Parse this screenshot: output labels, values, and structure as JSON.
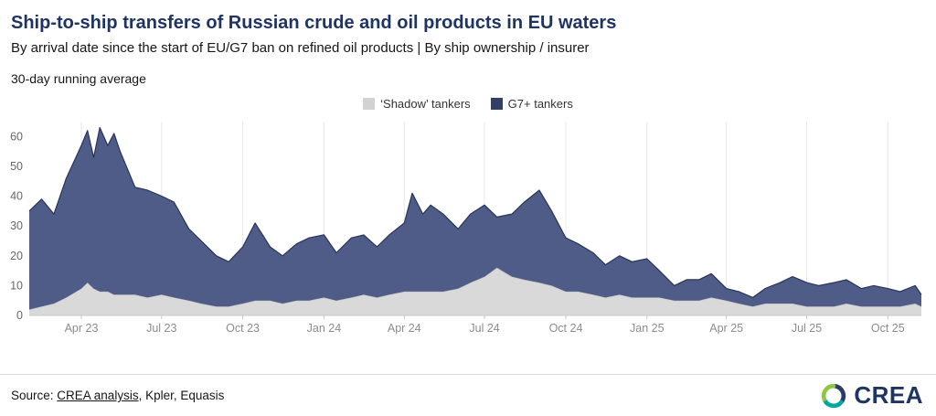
{
  "header": {
    "title": "Ship-to-ship transfers of Russian crude and oil products in EU waters",
    "subtitle": "By arrival date since the start of EU/G7 ban on refined oil products | By ship ownership / insurer",
    "note": "30-day running average"
  },
  "legend": {
    "items": [
      {
        "label": "‘Shadow’ tankers",
        "color": "#d2d2d2"
      },
      {
        "label": "G7+ tankers",
        "color": "#333f6b"
      }
    ]
  },
  "footer": {
    "source_prefix": "Source: ",
    "source_link": "CREA analysis",
    "source_suffix": ", Kpler, Equasis",
    "brand": "CREA"
  },
  "colors": {
    "title": "#1e3464",
    "grid": "#e8e8e8",
    "axis": "#c9c9c9",
    "x_label": "#8c8c8c",
    "y_label": "#666666"
  },
  "chart_data": {
    "type": "area",
    "stacked": true,
    "title": "Ship-to-ship transfers of Russian crude and oil products in EU waters",
    "xlabel": "",
    "ylabel": "",
    "ylim": [
      0,
      65
    ],
    "yticks": [
      0,
      10,
      20,
      30,
      40,
      50,
      60
    ],
    "grid": "vertical",
    "legend_position": "top-center",
    "x": [
      "2023-02-01",
      "2023-02-15",
      "2023-03-01",
      "2023-03-15",
      "2023-04-01",
      "2023-04-08",
      "2023-04-15",
      "2023-04-22",
      "2023-05-01",
      "2023-05-08",
      "2023-05-15",
      "2023-06-01",
      "2023-06-15",
      "2023-07-01",
      "2023-07-15",
      "2023-08-01",
      "2023-08-15",
      "2023-09-01",
      "2023-09-15",
      "2023-10-01",
      "2023-10-15",
      "2023-11-01",
      "2023-11-15",
      "2023-12-01",
      "2023-12-15",
      "2024-01-01",
      "2024-01-15",
      "2024-02-01",
      "2024-02-15",
      "2024-03-01",
      "2024-03-15",
      "2024-04-01",
      "2024-04-10",
      "2024-04-22",
      "2024-05-01",
      "2024-05-15",
      "2024-06-01",
      "2024-06-15",
      "2024-07-01",
      "2024-07-15",
      "2024-08-01",
      "2024-08-15",
      "2024-09-01",
      "2024-09-15",
      "2024-10-01",
      "2024-10-15",
      "2024-11-01",
      "2024-11-15",
      "2024-12-01",
      "2024-12-15",
      "2025-01-01",
      "2025-01-15",
      "2025-02-01",
      "2025-02-15",
      "2025-03-01",
      "2025-03-15",
      "2025-04-01",
      "2025-04-15",
      "2025-05-01",
      "2025-05-15",
      "2025-06-01",
      "2025-06-15",
      "2025-07-01",
      "2025-07-15",
      "2025-08-01",
      "2025-08-15",
      "2025-09-01",
      "2025-09-15",
      "2025-10-01",
      "2025-10-15",
      "2025-11-01",
      "2025-11-08"
    ],
    "xticks": [
      {
        "date": "2023-04-01",
        "label": "Apr 23"
      },
      {
        "date": "2023-07-01",
        "label": "Jul 23"
      },
      {
        "date": "2023-10-01",
        "label": "Oct 23"
      },
      {
        "date": "2024-01-01",
        "label": "Jan 24"
      },
      {
        "date": "2024-04-01",
        "label": "Apr 24"
      },
      {
        "date": "2024-07-01",
        "label": "Jul 24"
      },
      {
        "date": "2024-10-01",
        "label": "Oct 24"
      },
      {
        "date": "2025-01-01",
        "label": "Jan 25"
      },
      {
        "date": "2025-04-01",
        "label": "Apr 25"
      },
      {
        "date": "2025-07-01",
        "label": "Jul 25"
      },
      {
        "date": "2025-10-01",
        "label": "Oct 25"
      }
    ],
    "series": [
      {
        "name": "‘Shadow’ tankers",
        "color": "#d9d9d9",
        "edge": "#c2c2c2",
        "values": [
          2,
          3,
          4,
          6,
          9,
          11,
          9,
          8,
          8,
          7,
          7,
          7,
          6,
          7,
          6,
          5,
          4,
          3,
          3,
          4,
          5,
          5,
          4,
          5,
          5,
          6,
          5,
          6,
          7,
          6,
          7,
          8,
          8,
          8,
          8,
          8,
          9,
          11,
          13,
          16,
          13,
          12,
          11,
          10,
          8,
          8,
          7,
          6,
          7,
          6,
          6,
          6,
          5,
          5,
          5,
          6,
          5,
          4,
          3,
          4,
          4,
          4,
          3,
          3,
          3,
          4,
          3,
          3,
          3,
          3,
          4,
          3
        ]
      },
      {
        "name": "G7+ tankers",
        "color": "#4e5c87",
        "edge": "#283459",
        "values": [
          33,
          36,
          30,
          40,
          48,
          51,
          44,
          55,
          49,
          54,
          48,
          36,
          36,
          33,
          32,
          24,
          21,
          17,
          15,
          19,
          26,
          18,
          16,
          19,
          21,
          21,
          16,
          20,
          20,
          17,
          20,
          23,
          33,
          26,
          29,
          26,
          20,
          23,
          24,
          17,
          21,
          26,
          31,
          25,
          18,
          16,
          14,
          11,
          13,
          12,
          13,
          9,
          5,
          7,
          7,
          8,
          4,
          4,
          3,
          5,
          7,
          9,
          8,
          7,
          8,
          8,
          6,
          7,
          6,
          5,
          6,
          4
        ]
      }
    ]
  }
}
